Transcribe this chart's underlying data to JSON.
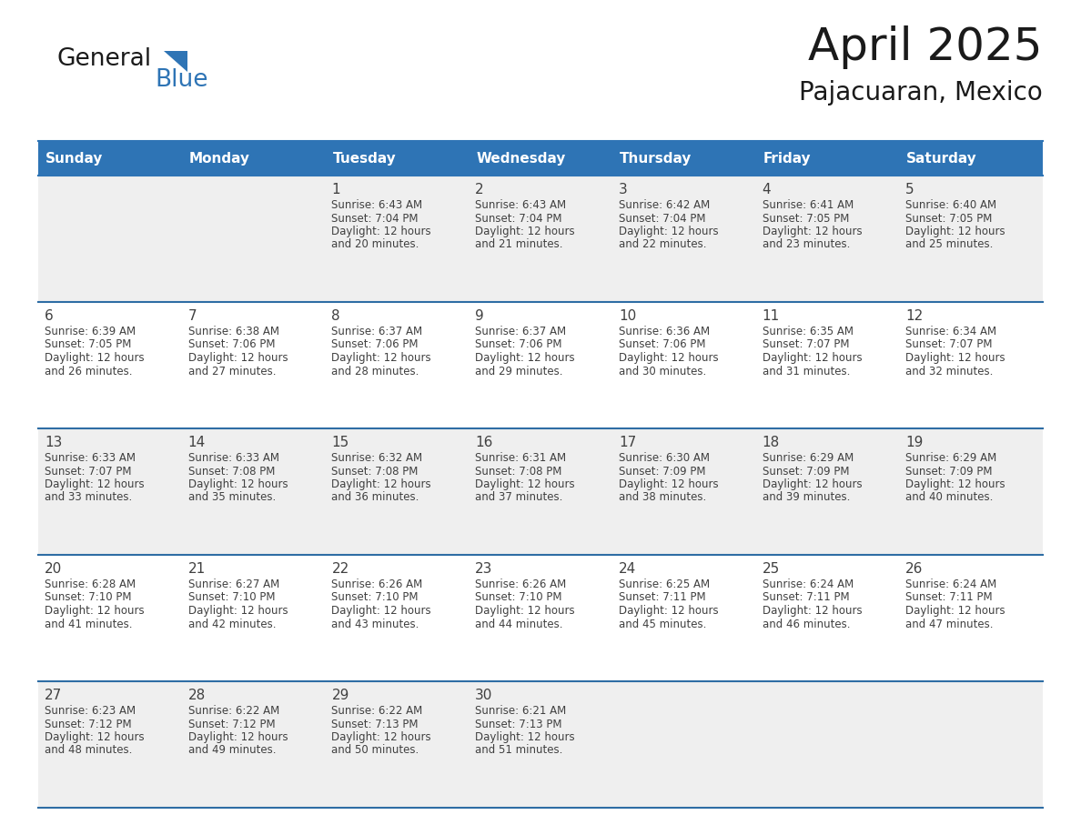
{
  "title": "April 2025",
  "subtitle": "Pajacuaran, Mexico",
  "header_bg": "#2E74B5",
  "header_text_color": "#FFFFFF",
  "cell_bg_odd": "#EFEFEF",
  "cell_bg_even": "#FFFFFF",
  "border_color": "#2E6DA4",
  "text_color": "#404040",
  "days_of_week": [
    "Sunday",
    "Monday",
    "Tuesday",
    "Wednesday",
    "Thursday",
    "Friday",
    "Saturday"
  ],
  "weeks": [
    [
      {
        "day": "",
        "sunrise": "",
        "sunset": "",
        "daylight": ""
      },
      {
        "day": "",
        "sunrise": "",
        "sunset": "",
        "daylight": ""
      },
      {
        "day": "1",
        "sunrise": "Sunrise: 6:43 AM",
        "sunset": "Sunset: 7:04 PM",
        "daylight": "Daylight: 12 hours\nand 20 minutes."
      },
      {
        "day": "2",
        "sunrise": "Sunrise: 6:43 AM",
        "sunset": "Sunset: 7:04 PM",
        "daylight": "Daylight: 12 hours\nand 21 minutes."
      },
      {
        "day": "3",
        "sunrise": "Sunrise: 6:42 AM",
        "sunset": "Sunset: 7:04 PM",
        "daylight": "Daylight: 12 hours\nand 22 minutes."
      },
      {
        "day": "4",
        "sunrise": "Sunrise: 6:41 AM",
        "sunset": "Sunset: 7:05 PM",
        "daylight": "Daylight: 12 hours\nand 23 minutes."
      },
      {
        "day": "5",
        "sunrise": "Sunrise: 6:40 AM",
        "sunset": "Sunset: 7:05 PM",
        "daylight": "Daylight: 12 hours\nand 25 minutes."
      }
    ],
    [
      {
        "day": "6",
        "sunrise": "Sunrise: 6:39 AM",
        "sunset": "Sunset: 7:05 PM",
        "daylight": "Daylight: 12 hours\nand 26 minutes."
      },
      {
        "day": "7",
        "sunrise": "Sunrise: 6:38 AM",
        "sunset": "Sunset: 7:06 PM",
        "daylight": "Daylight: 12 hours\nand 27 minutes."
      },
      {
        "day": "8",
        "sunrise": "Sunrise: 6:37 AM",
        "sunset": "Sunset: 7:06 PM",
        "daylight": "Daylight: 12 hours\nand 28 minutes."
      },
      {
        "day": "9",
        "sunrise": "Sunrise: 6:37 AM",
        "sunset": "Sunset: 7:06 PM",
        "daylight": "Daylight: 12 hours\nand 29 minutes."
      },
      {
        "day": "10",
        "sunrise": "Sunrise: 6:36 AM",
        "sunset": "Sunset: 7:06 PM",
        "daylight": "Daylight: 12 hours\nand 30 minutes."
      },
      {
        "day": "11",
        "sunrise": "Sunrise: 6:35 AM",
        "sunset": "Sunset: 7:07 PM",
        "daylight": "Daylight: 12 hours\nand 31 minutes."
      },
      {
        "day": "12",
        "sunrise": "Sunrise: 6:34 AM",
        "sunset": "Sunset: 7:07 PM",
        "daylight": "Daylight: 12 hours\nand 32 minutes."
      }
    ],
    [
      {
        "day": "13",
        "sunrise": "Sunrise: 6:33 AM",
        "sunset": "Sunset: 7:07 PM",
        "daylight": "Daylight: 12 hours\nand 33 minutes."
      },
      {
        "day": "14",
        "sunrise": "Sunrise: 6:33 AM",
        "sunset": "Sunset: 7:08 PM",
        "daylight": "Daylight: 12 hours\nand 35 minutes."
      },
      {
        "day": "15",
        "sunrise": "Sunrise: 6:32 AM",
        "sunset": "Sunset: 7:08 PM",
        "daylight": "Daylight: 12 hours\nand 36 minutes."
      },
      {
        "day": "16",
        "sunrise": "Sunrise: 6:31 AM",
        "sunset": "Sunset: 7:08 PM",
        "daylight": "Daylight: 12 hours\nand 37 minutes."
      },
      {
        "day": "17",
        "sunrise": "Sunrise: 6:30 AM",
        "sunset": "Sunset: 7:09 PM",
        "daylight": "Daylight: 12 hours\nand 38 minutes."
      },
      {
        "day": "18",
        "sunrise": "Sunrise: 6:29 AM",
        "sunset": "Sunset: 7:09 PM",
        "daylight": "Daylight: 12 hours\nand 39 minutes."
      },
      {
        "day": "19",
        "sunrise": "Sunrise: 6:29 AM",
        "sunset": "Sunset: 7:09 PM",
        "daylight": "Daylight: 12 hours\nand 40 minutes."
      }
    ],
    [
      {
        "day": "20",
        "sunrise": "Sunrise: 6:28 AM",
        "sunset": "Sunset: 7:10 PM",
        "daylight": "Daylight: 12 hours\nand 41 minutes."
      },
      {
        "day": "21",
        "sunrise": "Sunrise: 6:27 AM",
        "sunset": "Sunset: 7:10 PM",
        "daylight": "Daylight: 12 hours\nand 42 minutes."
      },
      {
        "day": "22",
        "sunrise": "Sunrise: 6:26 AM",
        "sunset": "Sunset: 7:10 PM",
        "daylight": "Daylight: 12 hours\nand 43 minutes."
      },
      {
        "day": "23",
        "sunrise": "Sunrise: 6:26 AM",
        "sunset": "Sunset: 7:10 PM",
        "daylight": "Daylight: 12 hours\nand 44 minutes."
      },
      {
        "day": "24",
        "sunrise": "Sunrise: 6:25 AM",
        "sunset": "Sunset: 7:11 PM",
        "daylight": "Daylight: 12 hours\nand 45 minutes."
      },
      {
        "day": "25",
        "sunrise": "Sunrise: 6:24 AM",
        "sunset": "Sunset: 7:11 PM",
        "daylight": "Daylight: 12 hours\nand 46 minutes."
      },
      {
        "day": "26",
        "sunrise": "Sunrise: 6:24 AM",
        "sunset": "Sunset: 7:11 PM",
        "daylight": "Daylight: 12 hours\nand 47 minutes."
      }
    ],
    [
      {
        "day": "27",
        "sunrise": "Sunrise: 6:23 AM",
        "sunset": "Sunset: 7:12 PM",
        "daylight": "Daylight: 12 hours\nand 48 minutes."
      },
      {
        "day": "28",
        "sunrise": "Sunrise: 6:22 AM",
        "sunset": "Sunset: 7:12 PM",
        "daylight": "Daylight: 12 hours\nand 49 minutes."
      },
      {
        "day": "29",
        "sunrise": "Sunrise: 6:22 AM",
        "sunset": "Sunset: 7:13 PM",
        "daylight": "Daylight: 12 hours\nand 50 minutes."
      },
      {
        "day": "30",
        "sunrise": "Sunrise: 6:21 AM",
        "sunset": "Sunset: 7:13 PM",
        "daylight": "Daylight: 12 hours\nand 51 minutes."
      },
      {
        "day": "",
        "sunrise": "",
        "sunset": "",
        "daylight": ""
      },
      {
        "day": "",
        "sunrise": "",
        "sunset": "",
        "daylight": ""
      },
      {
        "day": "",
        "sunrise": "",
        "sunset": "",
        "daylight": ""
      }
    ]
  ]
}
